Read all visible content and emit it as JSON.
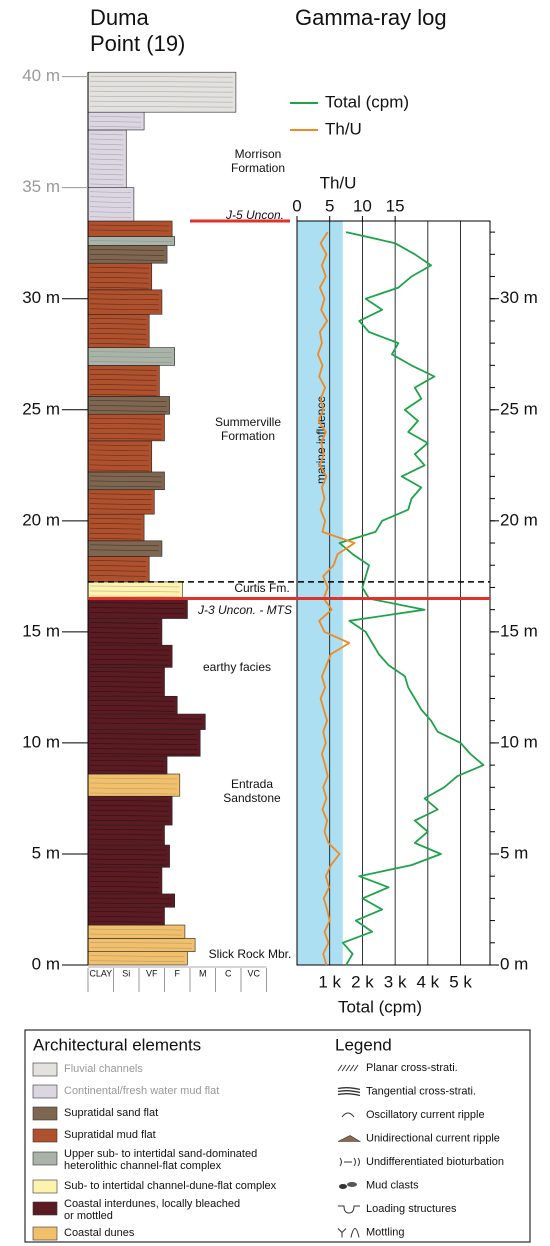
{
  "title_lines": [
    "Duma",
    "Point (19)"
  ],
  "column": {
    "yticks": [
      {
        "value": 0,
        "label": "0 m"
      },
      {
        "value": 5,
        "label": "5 m"
      },
      {
        "value": 10,
        "label": "10 m"
      },
      {
        "value": 15,
        "label": "15 m"
      },
      {
        "value": 20,
        "label": "20 m"
      },
      {
        "value": 25,
        "label": "25 m"
      },
      {
        "value": 30,
        "label": "30 m"
      },
      {
        "value": 35,
        "label": "35 m"
      },
      {
        "value": 40,
        "label": "40 m"
      }
    ],
    "muted_above": 33.5,
    "grain_classes": [
      "CLAY",
      "Si",
      "VF",
      "F",
      "M",
      "C",
      "VC"
    ],
    "beds": [
      {
        "base": 0,
        "top": 0.6,
        "element": 7,
        "grain": 3.9
      },
      {
        "base": 0.6,
        "top": 1.2,
        "element": 7,
        "grain": 4.2
      },
      {
        "base": 1.2,
        "top": 1.8,
        "element": 7,
        "grain": 3.8
      },
      {
        "base": 1.8,
        "top": 2.6,
        "element": 6,
        "grain": 3.0
      },
      {
        "base": 2.6,
        "top": 3.2,
        "element": 6,
        "grain": 3.4
      },
      {
        "base": 3.2,
        "top": 4.4,
        "element": 6,
        "grain": 2.9
      },
      {
        "base": 4.4,
        "top": 5.4,
        "element": 6,
        "grain": 3.2
      },
      {
        "base": 5.4,
        "top": 6.3,
        "element": 6,
        "grain": 3.0
      },
      {
        "base": 6.3,
        "top": 7.6,
        "element": 6,
        "grain": 3.3
      },
      {
        "base": 7.6,
        "top": 8.6,
        "element": 7,
        "grain": 3.6
      },
      {
        "base": 8.6,
        "top": 9.4,
        "element": 6,
        "grain": 3.1
      },
      {
        "base": 9.4,
        "top": 10.6,
        "element": 6,
        "grain": 4.4
      },
      {
        "base": 10.6,
        "top": 11.3,
        "element": 6,
        "grain": 4.6
      },
      {
        "base": 11.3,
        "top": 12.1,
        "element": 6,
        "grain": 3.5
      },
      {
        "base": 12.1,
        "top": 13.4,
        "element": 6,
        "grain": 3.0
      },
      {
        "base": 13.4,
        "top": 14.4,
        "element": 6,
        "grain": 3.3
      },
      {
        "base": 14.4,
        "top": 15.6,
        "element": 6,
        "grain": 2.9
      },
      {
        "base": 15.6,
        "top": 16.5,
        "element": 6,
        "grain": 3.9
      },
      {
        "base": 16.5,
        "top": 17.25,
        "element": 5,
        "grain": 3.7
      },
      {
        "base": 17.25,
        "top": 18.4,
        "element": 3,
        "grain": 2.4
      },
      {
        "base": 18.4,
        "top": 19.1,
        "element": 2,
        "grain": 2.9
      },
      {
        "base": 19.1,
        "top": 20.3,
        "element": 3,
        "grain": 2.2
      },
      {
        "base": 20.3,
        "top": 21.4,
        "element": 3,
        "grain": 2.6
      },
      {
        "base": 21.4,
        "top": 22.2,
        "element": 2,
        "grain": 3.0
      },
      {
        "base": 22.2,
        "top": 23.6,
        "element": 3,
        "grain": 2.5
      },
      {
        "base": 23.6,
        "top": 24.8,
        "element": 3,
        "grain": 3.0
      },
      {
        "base": 24.8,
        "top": 25.6,
        "element": 2,
        "grain": 3.2
      },
      {
        "base": 25.6,
        "top": 27.0,
        "element": 3,
        "grain": 2.8
      },
      {
        "base": 27.0,
        "top": 27.8,
        "element": 4,
        "grain": 3.4
      },
      {
        "base": 27.8,
        "top": 29.3,
        "element": 3,
        "grain": 2.4
      },
      {
        "base": 29.3,
        "top": 30.4,
        "element": 3,
        "grain": 2.9
      },
      {
        "base": 30.4,
        "top": 31.6,
        "element": 3,
        "grain": 2.5
      },
      {
        "base": 31.6,
        "top": 32.4,
        "element": 2,
        "grain": 3.1
      },
      {
        "base": 32.4,
        "top": 32.8,
        "element": 4,
        "grain": 3.4
      },
      {
        "base": 32.8,
        "top": 33.5,
        "element": 3,
        "grain": 3.3
      },
      {
        "base": 33.5,
        "top": 35.0,
        "element": 1,
        "grain": 1.8
      },
      {
        "base": 35.0,
        "top": 37.6,
        "element": 1,
        "grain": 1.5
      },
      {
        "base": 37.6,
        "top": 38.4,
        "element": 1,
        "grain": 2.2
      },
      {
        "base": 38.4,
        "top": 40.2,
        "element": 0,
        "grain": 5.8
      }
    ],
    "annotations": [
      [
        "Morrison",
        "Formation"
      ],
      [
        "J-5 Uncon."
      ],
      [
        "Summerville",
        "Formation"
      ],
      [
        "Curtis Fm."
      ],
      [
        "J-3 Uncon. - MTS"
      ],
      [
        "earthy facies"
      ],
      [
        "Entrada",
        "Sandstone"
      ],
      [
        "Slick Rock Mbr."
      ]
    ]
  },
  "chart_data": {
    "type": "line",
    "title": "Gamma-ray log",
    "x_label": "Total (cpm)",
    "x2_label": "Th/U",
    "depth": [
      0,
      0.5,
      1,
      1.5,
      2,
      2.5,
      3,
      3.5,
      4,
      4.5,
      5,
      5.5,
      6,
      6.5,
      7,
      7.5,
      8,
      8.5,
      9,
      9.5,
      10,
      10.5,
      11,
      11.5,
      12,
      12.5,
      13,
      13.5,
      14,
      14.5,
      15,
      15.5,
      16,
      16.5,
      17,
      17.5,
      18,
      18.5,
      19,
      19.5,
      20,
      20.5,
      21,
      21.5,
      22,
      22.5,
      23,
      23.5,
      24,
      24.5,
      25,
      25.5,
      26,
      26.5,
      27,
      27.5,
      28,
      28.5,
      29,
      29.5,
      30,
      30.5,
      31,
      31.5,
      32,
      32.5,
      33
    ],
    "series": [
      {
        "name": "Total (cpm)",
        "color": "#1fa34a",
        "values": [
          1500,
          1700,
          1400,
          2300,
          1800,
          2600,
          2000,
          2800,
          1900,
          3500,
          4400,
          3600,
          4000,
          3600,
          4300,
          3900,
          4500,
          4900,
          5700,
          5300,
          5000,
          4300,
          4100,
          3800,
          3600,
          3400,
          3300,
          2800,
          2500,
          2300,
          2100,
          1600,
          3900,
          2200,
          2000,
          2100,
          2200,
          1700,
          1300,
          2400,
          2600,
          3400,
          3500,
          3800,
          3200,
          3900,
          3600,
          4000,
          3400,
          3700,
          3300,
          3800,
          3600,
          4200,
          3500,
          2900,
          3100,
          2200,
          1900,
          2600,
          2100,
          3100,
          3500,
          4100,
          3600,
          3000,
          1500
        ]
      },
      {
        "name": "Th/U",
        "color": "#f08a24",
        "axis": "x2",
        "values": [
          4.5,
          4.0,
          4.8,
          4.2,
          5.0,
          4.6,
          4.1,
          4.9,
          4.4,
          5.2,
          6.5,
          4.8,
          4.2,
          4.6,
          3.9,
          4.5,
          4.0,
          4.7,
          4.3,
          3.8,
          4.4,
          4.0,
          4.6,
          4.1,
          3.6,
          4.3,
          3.8,
          4.5,
          5.2,
          8.0,
          4.2,
          3.4,
          5.3,
          4.1,
          4.7,
          4.0,
          5.6,
          6.2,
          8.8,
          3.9,
          4.3,
          3.6,
          4.2,
          3.8,
          4.5,
          3.5,
          4.1,
          3.7,
          4.4,
          3.3,
          4.0,
          3.6,
          4.3,
          3.4,
          3.9,
          3.2,
          3.8,
          3.5,
          4.6,
          3.7,
          4.2,
          3.5,
          4.4,
          3.8,
          4.5,
          3.6,
          4.7
        ]
      }
    ],
    "xlim": [
      0,
      5900
    ],
    "xticks": [
      {
        "value": 1000,
        "label": "1 k"
      },
      {
        "value": 2000,
        "label": "2 k"
      },
      {
        "value": 3000,
        "label": "3 k"
      },
      {
        "value": 4000,
        "label": "4 k"
      },
      {
        "value": 5000,
        "label": "5 k"
      }
    ],
    "x2lim": [
      0,
      29.5
    ],
    "x2ticks": [
      0,
      5,
      10,
      15
    ],
    "ylim": [
      0,
      33.5
    ],
    "yticks": [
      {
        "value": 0,
        "label": "0 m"
      },
      {
        "value": 5,
        "label": "5 m"
      },
      {
        "value": 10,
        "label": "10 m"
      },
      {
        "value": 15,
        "label": "15 m"
      },
      {
        "value": 20,
        "label": "20 m"
      },
      {
        "value": 25,
        "label": "25 m"
      },
      {
        "value": 30,
        "label": "30 m"
      }
    ],
    "yminorticks": [
      0,
      1,
      2,
      3,
      4,
      5,
      6,
      7,
      8,
      9,
      10,
      11,
      12,
      13,
      14,
      15,
      16,
      17,
      18,
      19,
      20,
      21,
      22,
      23,
      24,
      25,
      26,
      27,
      28,
      29,
      30,
      31,
      32,
      33
    ],
    "grid": true,
    "legend": "top",
    "band": {
      "label": "marine influence",
      "range": [
        0,
        7
      ],
      "axis": "x2",
      "color": "#addff2"
    },
    "boundaries": [
      {
        "depth": 16.5,
        "color": "#e0312a",
        "style": "solid",
        "span": "full"
      },
      {
        "depth": 17.25,
        "color": "#000000",
        "style": "dashed",
        "span": "full"
      },
      {
        "depth": 33.5,
        "color": "#e0312a",
        "style": "solid",
        "span": "partial"
      }
    ]
  },
  "legend": {
    "elements_title": "Architectural elements",
    "elements": [
      {
        "name": [
          "Fluvial channels"
        ],
        "color": "#e4e2df",
        "muted": true
      },
      {
        "name": [
          "Continental/fresh water mud flat"
        ],
        "color": "#dcd6e2",
        "muted": true
      },
      {
        "name": [
          "Supratidal sand flat"
        ],
        "color": "#7f6650",
        "muted": false
      },
      {
        "name": [
          "Supratidal mud flat"
        ],
        "color": "#b0512e",
        "muted": false
      },
      {
        "name": [
          "Upper sub- to intertidal sand-dominated",
          "heterolithic channel-flat complex"
        ],
        "color": "#a9b3a8",
        "muted": false
      },
      {
        "name": [
          "Sub- to intertidal channel-dune-flat complex"
        ],
        "color": "#fdf2ae",
        "muted": false
      },
      {
        "name": [
          "Coastal interdunes, locally bleached",
          "or mottled"
        ],
        "color": "#5b1b22",
        "muted": false
      },
      {
        "name": [
          "Coastal dunes"
        ],
        "color": "#f2c06a",
        "muted": false
      }
    ],
    "structures_title": "Legend",
    "structures": [
      "Planar cross-strati.",
      "Tangential cross-strati.",
      "Oscillatory current ripple",
      "Unidirectional current ripple",
      "Undifferentiated bioturbation",
      "Mud clasts",
      "Loading structures",
      "Mottling"
    ]
  }
}
